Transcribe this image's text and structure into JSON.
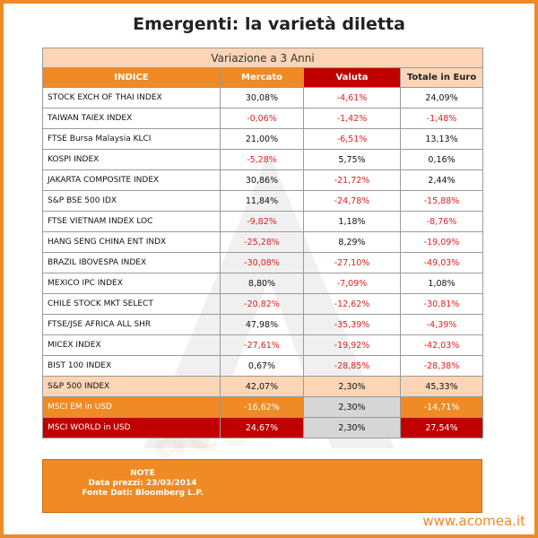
{
  "title": "Emergenti: la varietà diletta",
  "chart_data": {
    "type": "table",
    "banner": "Variazione a 3 Anni",
    "columns": [
      "INDICE",
      "Mercato",
      "Valuta",
      "Totale in Euro"
    ],
    "rows": [
      {
        "name": "STOCK EXCH OF THAI INDEX",
        "mercato": "30,08%",
        "valuta": "-4,61%",
        "totale": "24,09%"
      },
      {
        "name": "TAIWAN TAIEX INDEX",
        "mercato": "-0,06%",
        "valuta": "-1,42%",
        "totale": "-1,48%"
      },
      {
        "name": "FTSE Bursa Malaysia KLCI",
        "mercato": "21,00%",
        "valuta": "-6,51%",
        "totale": "13,13%"
      },
      {
        "name": "KOSPI INDEX",
        "mercato": "-5,28%",
        "valuta": "5,75%",
        "totale": "0,16%"
      },
      {
        "name": "JAKARTA COMPOSITE INDEX",
        "mercato": "30,86%",
        "valuta": "-21,72%",
        "totale": "2,44%"
      },
      {
        "name": "S&P BSE 500 IDX",
        "mercato": "11,84%",
        "valuta": "-24,78%",
        "totale": "-15,88%"
      },
      {
        "name": "FTSE VIETNAM INDEX LOC",
        "mercato": "-9,82%",
        "valuta": "1,18%",
        "totale": "-8,76%"
      },
      {
        "name": "HANG SENG CHINA ENT INDX",
        "mercato": "-25,28%",
        "valuta": "8,29%",
        "totale": "-19,09%"
      },
      {
        "name": "BRAZIL IBOVESPA INDEX",
        "mercato": "-30,08%",
        "valuta": "-27,10%",
        "totale": "-49,03%"
      },
      {
        "name": "MEXICO IPC INDEX",
        "mercato": "8,80%",
        "valuta": "-7,09%",
        "totale": "1,08%"
      },
      {
        "name": "CHILE  STOCK MKT SELECT",
        "mercato": "-20,82%",
        "valuta": "-12,62%",
        "totale": "-30,81%"
      },
      {
        "name": "FTSE/JSE AFRICA ALL SHR",
        "mercato": "47,98%",
        "valuta": "-35,39%",
        "totale": "-4,39%"
      },
      {
        "name": "MICEX INDEX",
        "mercato": "-27,61%",
        "valuta": "-19,92%",
        "totale": "-42,03%"
      },
      {
        "name": "BIST 100 INDEX",
        "mercato": "0,67%",
        "valuta": "-28,85%",
        "totale": "-28,38%"
      }
    ],
    "benchmarks": [
      {
        "name": "S&P 500 INDEX",
        "mercato": "42,07%",
        "valuta": "2,30%",
        "totale": "45,33%",
        "style": "sp"
      },
      {
        "name": "MSCI EM in USD",
        "mercato": "-16,62%",
        "valuta": "2,30%",
        "totale": "-14,71%",
        "style": "em"
      },
      {
        "name": "MSCI WORLD in USD",
        "mercato": "24,67%",
        "valuta": "2,30%",
        "totale": "27,54%",
        "style": "world"
      }
    ]
  },
  "notes": {
    "heading": "NOTE",
    "line1": "Data prezzi: 23/03/2014",
    "line2": "Fonte Dati: Bloomberg L.P."
  },
  "watermark": "acomea",
  "website": "www.acomea.it",
  "colors": {
    "orange": "#f08a24",
    "red": "#c00000",
    "peach": "#fbd5b5",
    "negative": "#e02020"
  }
}
